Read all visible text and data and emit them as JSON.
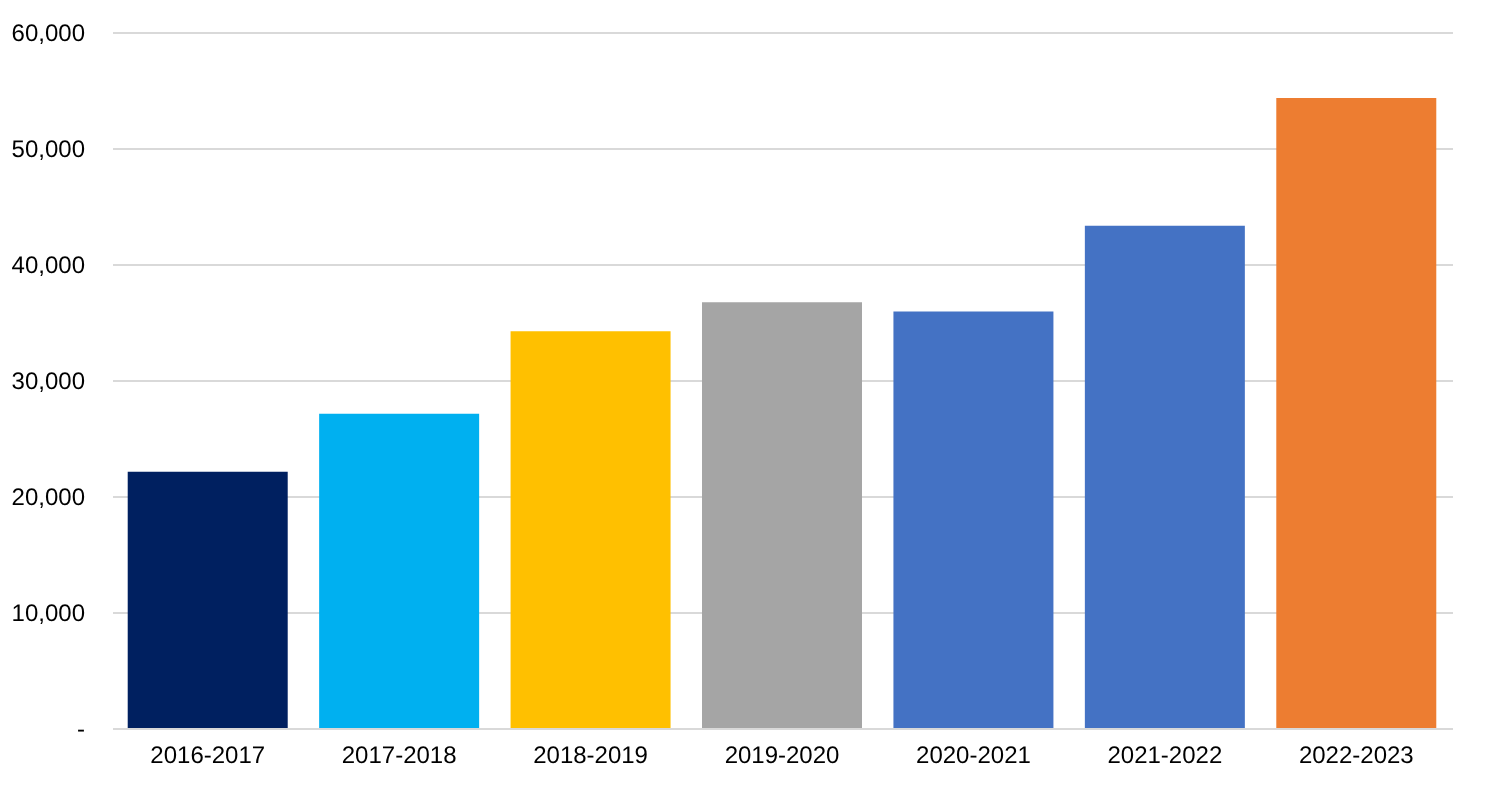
{
  "chart_data": {
    "type": "bar",
    "categories": [
      "2016-2017",
      "2017-2018",
      "2018-2019",
      "2019-2020",
      "2020-2021",
      "2021-2022",
      "2022-2023"
    ],
    "values": [
      22100,
      27100,
      34200,
      36700,
      35900,
      43300,
      54300
    ],
    "colors": [
      "#002060",
      "#00b0f0",
      "#ffc000",
      "#a5a5a5",
      "#4472c4",
      "#4472c4",
      "#ed7d31"
    ],
    "ylim": [
      0,
      60000
    ],
    "yticks": [
      {
        "value": 0,
        "label": "-"
      },
      {
        "value": 10000,
        "label": "10,000"
      },
      {
        "value": 20000,
        "label": "20,000"
      },
      {
        "value": 30000,
        "label": "30,000"
      },
      {
        "value": 40000,
        "label": "40,000"
      },
      {
        "value": 50000,
        "label": "50,000"
      },
      {
        "value": 60000,
        "label": "60,000"
      }
    ],
    "grid": "y"
  }
}
